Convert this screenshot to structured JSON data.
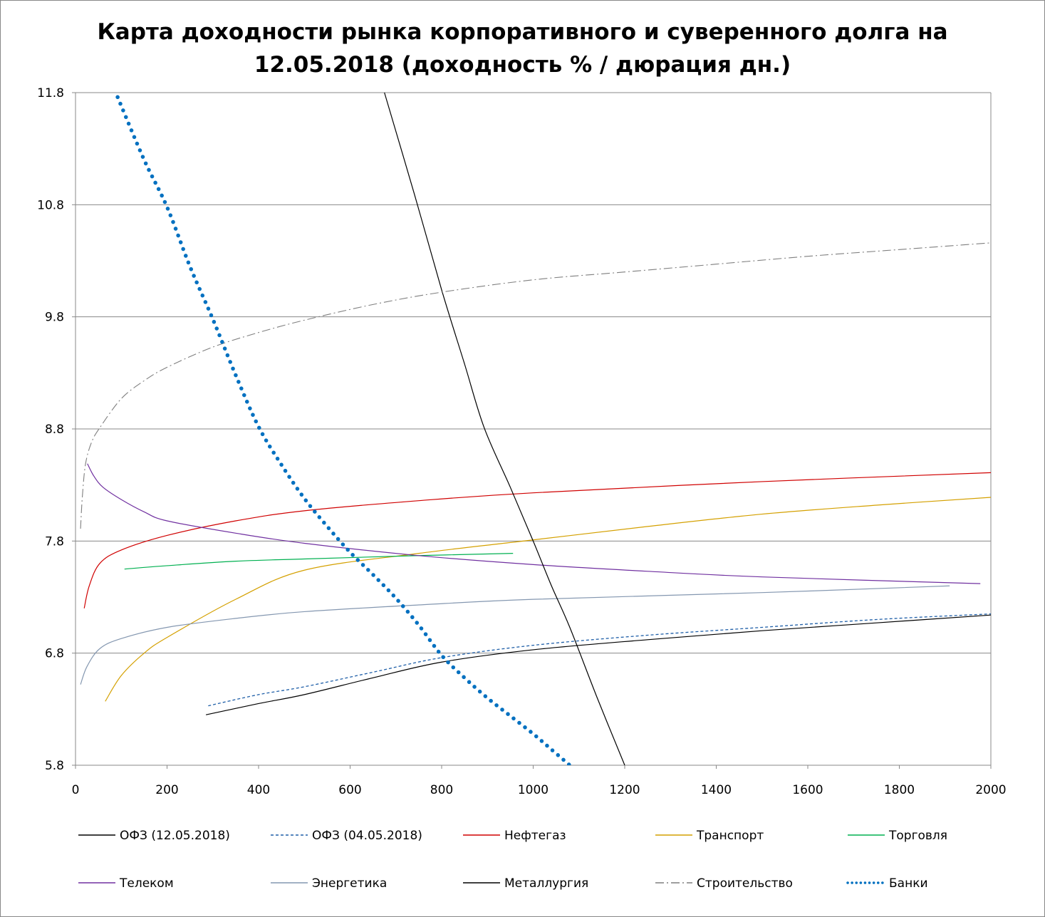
{
  "chart_data": {
    "type": "line",
    "title_line1": "Карта доходности рынка корпоративного и суверенного долга на",
    "title_line2": "12.05.2018 (доходность % / дюрация дн.)",
    "xlabel": "",
    "ylabel": "",
    "xlim": [
      0,
      2000
    ],
    "ylim": [
      5.8,
      11.8
    ],
    "x_ticks": [
      "0",
      "200",
      "400",
      "600",
      "800",
      "1000",
      "1200",
      "1400",
      "1600",
      "1800",
      "2000"
    ],
    "y_ticks": [
      "5.8",
      "6.8",
      "7.8",
      "8.8",
      "9.8",
      "10.8",
      "11.8"
    ],
    "grid": "horizontal",
    "legend_position": "bottom",
    "series": [
      {
        "name": "ОФЗ (12.05.2018)",
        "color": "#000000",
        "style": "solid",
        "points": [
          [
            285,
            6.25
          ],
          [
            400,
            6.35
          ],
          [
            500,
            6.43
          ],
          [
            650,
            6.58
          ],
          [
            800,
            6.72
          ],
          [
            1000,
            6.83
          ],
          [
            1250,
            6.92
          ],
          [
            1500,
            7.0
          ],
          [
            1750,
            7.07
          ],
          [
            2000,
            7.14
          ]
        ]
      },
      {
        "name": "ОФЗ (04.05.2018)",
        "color": "#1f5fa8",
        "style": "dashed",
        "points": [
          [
            290,
            6.33
          ],
          [
            400,
            6.43
          ],
          [
            500,
            6.5
          ],
          [
            650,
            6.63
          ],
          [
            800,
            6.76
          ],
          [
            1000,
            6.87
          ],
          [
            1250,
            6.96
          ],
          [
            1500,
            7.03
          ],
          [
            1750,
            7.1
          ],
          [
            2000,
            7.15
          ]
        ]
      },
      {
        "name": "Нефтегаз",
        "color": "#d00000",
        "style": "solid",
        "points": [
          [
            19,
            7.2
          ],
          [
            30,
            7.4
          ],
          [
            53,
            7.6
          ],
          [
            100,
            7.72
          ],
          [
            200,
            7.85
          ],
          [
            350,
            7.98
          ],
          [
            500,
            8.07
          ],
          [
            750,
            8.16
          ],
          [
            1000,
            8.23
          ],
          [
            1500,
            8.33
          ],
          [
            2000,
            8.41
          ]
        ]
      },
      {
        "name": "Транспорт",
        "color": "#d4a000",
        "style": "solid",
        "points": [
          [
            65,
            6.37
          ],
          [
            100,
            6.6
          ],
          [
            150,
            6.8
          ],
          [
            200,
            6.94
          ],
          [
            350,
            7.28
          ],
          [
            500,
            7.54
          ],
          [
            750,
            7.69
          ],
          [
            1000,
            7.81
          ],
          [
            1250,
            7.93
          ],
          [
            1500,
            8.04
          ],
          [
            1750,
            8.12
          ],
          [
            2000,
            8.19
          ]
        ]
      },
      {
        "name": "Торговля",
        "color": "#00b050",
        "style": "solid",
        "points": [
          [
            107,
            7.55
          ],
          [
            200,
            7.58
          ],
          [
            350,
            7.62
          ],
          [
            500,
            7.64
          ],
          [
            750,
            7.67
          ],
          [
            956,
            7.69
          ]
        ]
      },
      {
        "name": "Телеком",
        "color": "#7030a0",
        "style": "solid",
        "points": [
          [
            26,
            8.49
          ],
          [
            40,
            8.38
          ],
          [
            60,
            8.28
          ],
          [
            100,
            8.17
          ],
          [
            150,
            8.06
          ],
          [
            200,
            7.98
          ],
          [
            350,
            7.87
          ],
          [
            500,
            7.78
          ],
          [
            750,
            7.67
          ],
          [
            1000,
            7.59
          ],
          [
            1250,
            7.53
          ],
          [
            1500,
            7.48
          ],
          [
            1977,
            7.42
          ]
        ]
      },
      {
        "name": "Энергетика",
        "color": "#8497b0",
        "style": "solid",
        "points": [
          [
            11,
            6.52
          ],
          [
            25,
            6.68
          ],
          [
            53,
            6.84
          ],
          [
            100,
            6.93
          ],
          [
            200,
            7.03
          ],
          [
            350,
            7.11
          ],
          [
            500,
            7.17
          ],
          [
            750,
            7.23
          ],
          [
            1000,
            7.28
          ],
          [
            1500,
            7.34
          ],
          [
            1910,
            7.4
          ]
        ]
      },
      {
        "name": "Металлургия",
        "color": "#000000",
        "style": "solid",
        "points": [
          [
            675,
            11.8
          ],
          [
            740,
            10.9
          ],
          [
            800,
            10.04
          ],
          [
            850,
            9.38
          ],
          [
            893,
            8.81
          ],
          [
            950,
            8.28
          ],
          [
            1000,
            7.8
          ],
          [
            1040,
            7.4
          ],
          [
            1080,
            7.03
          ],
          [
            1140,
            6.4
          ],
          [
            1200,
            5.8
          ]
        ]
      },
      {
        "name": "Строительство",
        "color": "#7f7f7f",
        "style": "dashdot",
        "points": [
          [
            11,
            7.91
          ],
          [
            15,
            8.2
          ],
          [
            22,
            8.49
          ],
          [
            35,
            8.68
          ],
          [
            53,
            8.81
          ],
          [
            100,
            9.07
          ],
          [
            150,
            9.23
          ],
          [
            200,
            9.35
          ],
          [
            300,
            9.53
          ],
          [
            400,
            9.66
          ],
          [
            500,
            9.77
          ],
          [
            650,
            9.91
          ],
          [
            800,
            10.02
          ],
          [
            1000,
            10.13
          ],
          [
            1200,
            10.2
          ],
          [
            1400,
            10.27
          ],
          [
            1600,
            10.34
          ],
          [
            1800,
            10.4
          ],
          [
            2000,
            10.46
          ]
        ]
      },
      {
        "name": "Банки",
        "color": "#0070c0",
        "style": "dotted",
        "points": [
          [
            92,
            11.76
          ],
          [
            150,
            11.2
          ],
          [
            200,
            10.78
          ],
          [
            250,
            10.25
          ],
          [
            300,
            9.78
          ],
          [
            350,
            9.28
          ],
          [
            400,
            8.82
          ],
          [
            450,
            8.48
          ],
          [
            500,
            8.18
          ],
          [
            550,
            7.93
          ],
          [
            600,
            7.7
          ],
          [
            650,
            7.5
          ],
          [
            700,
            7.29
          ],
          [
            750,
            7.05
          ],
          [
            800,
            6.78
          ],
          [
            850,
            6.58
          ],
          [
            900,
            6.4
          ],
          [
            950,
            6.24
          ],
          [
            1000,
            6.08
          ],
          [
            1040,
            5.94
          ],
          [
            1080,
            5.8
          ]
        ]
      }
    ]
  }
}
